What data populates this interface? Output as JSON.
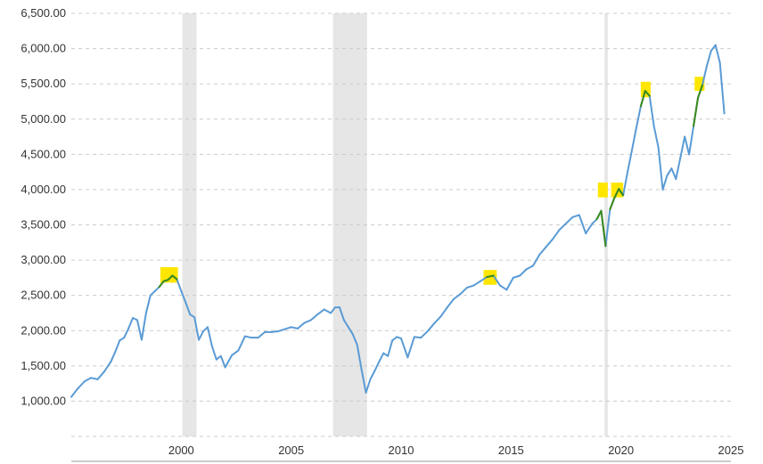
{
  "chart_data": {
    "type": "line",
    "title": "",
    "xlabel": "",
    "ylabel": "",
    "ylim": [
      500,
      6500
    ],
    "xlim": [
      1995.0,
      2025.0
    ],
    "grid": true,
    "legend": "none",
    "colors": {
      "line": "#5a9bd5",
      "recession_band": "#e6e6e6",
      "highlight": "#ffe600",
      "highlight_line": "#3a8a1a",
      "axis": "#cccccc"
    },
    "y_ticks": [
      {
        "value": 1000,
        "label": "1,000.00"
      },
      {
        "value": 1500,
        "label": "1,500.00"
      },
      {
        "value": 2000,
        "label": "2,000.00"
      },
      {
        "value": 2500,
        "label": "2,500.00"
      },
      {
        "value": 3000,
        "label": "3,000.00"
      },
      {
        "value": 3500,
        "label": "3,500.00"
      },
      {
        "value": 4000,
        "label": "4,000.00"
      },
      {
        "value": 4500,
        "label": "4,500.00"
      },
      {
        "value": 5000,
        "label": "5,000.00"
      },
      {
        "value": 5500,
        "label": "5,500.00"
      },
      {
        "value": 6000,
        "label": "6,000.00"
      },
      {
        "value": 6500,
        "label": "6,500.00"
      }
    ],
    "x_ticks": [
      {
        "value": 2000,
        "label": "2000"
      },
      {
        "value": 2005,
        "label": "2005"
      },
      {
        "value": 2010,
        "label": "2010"
      },
      {
        "value": 2015,
        "label": "2015"
      },
      {
        "value": 2020,
        "label": "2020"
      },
      {
        "value": 2025,
        "label": "2025"
      }
    ],
    "recession_bands": [
      {
        "start": 2000.05,
        "end": 2000.7
      },
      {
        "start": 2006.9,
        "end": 2008.45
      },
      {
        "start": 2019.25,
        "end": 2019.4
      }
    ],
    "highlights": [
      {
        "x_start": 1999.05,
        "x_end": 1999.85,
        "y_low": 2680,
        "y_high": 2900
      },
      {
        "x_start": 2013.75,
        "x_end": 2014.35,
        "y_low": 2650,
        "y_high": 2860
      },
      {
        "x_start": 2018.95,
        "x_end": 2019.4,
        "y_low": 3890,
        "y_high": 4100
      },
      {
        "x_start": 2019.55,
        "x_end": 2020.1,
        "y_low": 3890,
        "y_high": 4100
      },
      {
        "x_start": 2020.9,
        "x_end": 2021.35,
        "y_low": 5310,
        "y_high": 5530
      },
      {
        "x_start": 2023.35,
        "x_end": 2023.8,
        "y_low": 5400,
        "y_high": 5600
      }
    ],
    "series": [
      {
        "x": [
          1995.0,
          1995.3,
          1995.6,
          1995.9,
          1996.2,
          1996.5,
          1996.8,
          1997.0,
          1997.2,
          1997.4,
          1997.6,
          1997.8,
          1998.0,
          1998.2,
          1998.4,
          1998.6,
          1998.8,
          1999.0,
          1999.2,
          1999.4,
          1999.6,
          1999.8,
          2000.0,
          2000.2,
          2000.4,
          2000.6,
          2000.8,
          2001.0,
          2001.2,
          2001.4,
          2001.6,
          2001.8,
          2002.0,
          2002.3,
          2002.6,
          2002.9,
          2003.2,
          2003.5,
          2003.8,
          2004.1,
          2004.4,
          2004.7,
          2005.0,
          2005.3,
          2005.6,
          2005.9,
          2006.2,
          2006.5,
          2006.8,
          2007.0,
          2007.2,
          2007.4,
          2007.6,
          2007.8,
          2008.0,
          2008.2,
          2008.4,
          2008.6,
          2008.8,
          2009.0,
          2009.2,
          2009.4,
          2009.6,
          2009.8,
          2010.0,
          2010.3,
          2010.6,
          2010.9,
          2011.2,
          2011.5,
          2011.8,
          2012.1,
          2012.4,
          2012.7,
          2013.0,
          2013.3,
          2013.6,
          2013.9,
          2014.2,
          2014.5,
          2014.8,
          2015.1,
          2015.4,
          2015.7,
          2016.0,
          2016.3,
          2016.6,
          2016.9,
          2017.2,
          2017.5,
          2017.8,
          2018.1,
          2018.4,
          2018.7,
          2018.9,
          2019.1,
          2019.3,
          2019.5,
          2019.7,
          2019.9,
          2020.1,
          2020.3,
          2020.5,
          2020.7,
          2020.9,
          2021.1,
          2021.3,
          2021.5,
          2021.7,
          2021.9,
          2022.1,
          2022.3,
          2022.5,
          2022.7,
          2022.9,
          2023.1,
          2023.3,
          2023.5,
          2023.7,
          2023.9,
          2024.1,
          2024.3,
          2024.5,
          2024.7
        ],
        "values": [
          1060,
          1180,
          1280,
          1330,
          1310,
          1420,
          1560,
          1700,
          1860,
          1900,
          2030,
          2180,
          2150,
          1870,
          2250,
          2500,
          2560,
          2620,
          2700,
          2720,
          2780,
          2730,
          2560,
          2400,
          2230,
          2190,
          1870,
          1990,
          2050,
          1780,
          1590,
          1640,
          1480,
          1650,
          1720,
          1920,
          1900,
          1900,
          1980,
          1980,
          1990,
          2020,
          2050,
          2030,
          2110,
          2150,
          2230,
          2300,
          2250,
          2330,
          2330,
          2150,
          2050,
          1950,
          1800,
          1450,
          1120,
          1310,
          1430,
          1560,
          1680,
          1640,
          1860,
          1910,
          1890,
          1620,
          1910,
          1900,
          1990,
          2100,
          2200,
          2330,
          2450,
          2520,
          2610,
          2640,
          2700,
          2760,
          2780,
          2640,
          2580,
          2750,
          2780,
          2870,
          2920,
          3080,
          3190,
          3300,
          3430,
          3520,
          3610,
          3640,
          3380,
          3520,
          3580,
          3700,
          3200,
          3720,
          3880,
          4010,
          3920,
          4250,
          4560,
          4880,
          5180,
          5400,
          5330,
          4900,
          4600,
          4000,
          4200,
          4300,
          4150,
          4450,
          4750,
          4500,
          4900,
          5300,
          5480,
          5750,
          5970,
          6050,
          5800,
          5080
        ]
      }
    ]
  }
}
